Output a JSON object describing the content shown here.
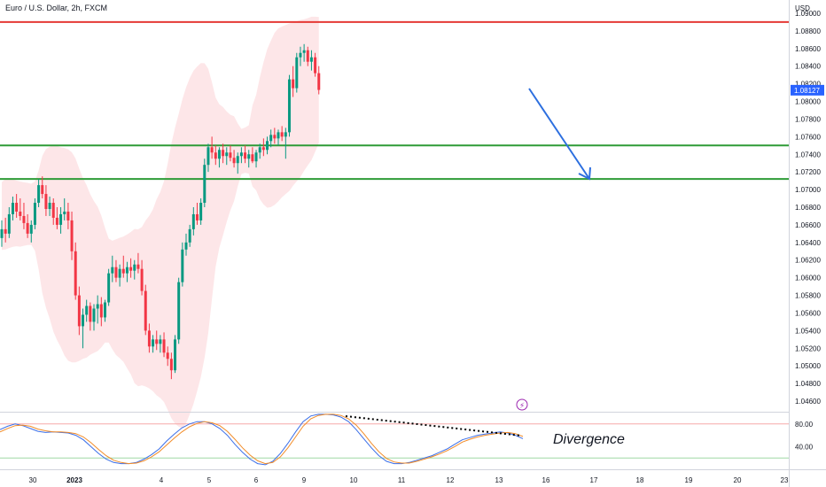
{
  "header": {
    "title": "Euro / U.S. Dollar, 2h, FXCM",
    "currency": "USD"
  },
  "colors": {
    "up": "#089981",
    "down": "#f23645",
    "band": "#fde2e4",
    "resistance": "#e53935",
    "support": "#2e9b37",
    "arrow": "#2d6fdf",
    "stoch_k": "#3a6ee8",
    "stoch_d": "#f28c28",
    "last_badge": "#2962ff"
  },
  "chart_data": [
    {
      "type": "candlestick",
      "series": "EUR/USD",
      "yaxis": {
        "ticks": [
          "1.09000",
          "1.08800",
          "1.08600",
          "1.08400",
          "1.08200",
          "1.08000",
          "1.07800",
          "1.07600",
          "1.07400",
          "1.07200",
          "1.07000",
          "1.06800",
          "1.06600",
          "1.06400",
          "1.06200",
          "1.06000",
          "1.05800",
          "1.05600",
          "1.05400",
          "1.05200",
          "1.05000",
          "1.04800",
          "1.04600"
        ],
        "range": [
          1.0448,
          1.0915
        ]
      },
      "xaxis": {
        "labels": [
          "30",
          "2023",
          "4",
          "5",
          "6",
          "9",
          "10",
          "11",
          "12",
          "13",
          "16",
          "17",
          "18",
          "19",
          "20",
          "23"
        ]
      },
      "last_price": "1.08127",
      "horizontal_levels": [
        {
          "price": 1.089,
          "role": "resistance"
        },
        {
          "price": 1.075,
          "role": "support"
        },
        {
          "price": 1.0712,
          "role": "support"
        }
      ],
      "candles": [
        [
          1.0645,
          1.0665,
          1.0635,
          1.0655
        ],
        [
          1.0655,
          1.0668,
          1.064,
          1.065
        ],
        [
          1.065,
          1.068,
          1.0645,
          1.0672
        ],
        [
          1.0672,
          1.0692,
          1.0665,
          1.0685
        ],
        [
          1.0685,
          1.0695,
          1.0668,
          1.0675
        ],
        [
          1.0675,
          1.069,
          1.0665,
          1.067
        ],
        [
          1.067,
          1.0685,
          1.0655,
          1.0662
        ],
        [
          1.0662,
          1.0672,
          1.0645,
          1.065
        ],
        [
          1.065,
          1.0665,
          1.064,
          1.066
        ],
        [
          1.066,
          1.069,
          1.0655,
          1.0685
        ],
        [
          1.0685,
          1.0712,
          1.068,
          1.0705
        ],
        [
          1.0705,
          1.0715,
          1.069,
          1.0695
        ],
        [
          1.0695,
          1.0705,
          1.067,
          1.0678
        ],
        [
          1.0678,
          1.0692,
          1.067,
          1.0685
        ],
        [
          1.0685,
          1.069,
          1.066,
          1.0668
        ],
        [
          1.0668,
          1.068,
          1.0655,
          1.066
        ],
        [
          1.066,
          1.068,
          1.065,
          1.0672
        ],
        [
          1.0672,
          1.069,
          1.0665,
          1.0675
        ],
        [
          1.0675,
          1.0685,
          1.0655,
          1.0665
        ],
        [
          1.0665,
          1.0675,
          1.062,
          1.063
        ],
        [
          1.063,
          1.064,
          1.0575,
          1.058
        ],
        [
          1.058,
          1.059,
          1.0535,
          1.0545
        ],
        [
          1.0545,
          1.0565,
          1.052,
          1.0558
        ],
        [
          1.0558,
          1.0575,
          1.055,
          1.0568
        ],
        [
          1.0568,
          1.0572,
          1.054,
          1.055
        ],
        [
          1.055,
          1.057,
          1.054,
          1.0565
        ],
        [
          1.0565,
          1.058,
          1.0548,
          1.057
        ],
        [
          1.057,
          1.0578,
          1.0545,
          1.0555
        ],
        [
          1.0555,
          1.0575,
          1.055,
          1.0572
        ],
        [
          1.0572,
          1.061,
          1.0568,
          1.0605
        ],
        [
          1.0605,
          1.0625,
          1.0595,
          1.0612
        ],
        [
          1.0612,
          1.062,
          1.0595,
          1.06
        ],
        [
          1.06,
          1.0615,
          1.059,
          1.061
        ],
        [
          1.061,
          1.0625,
          1.06,
          1.0605
        ],
        [
          1.0605,
          1.0618,
          1.0595,
          1.0612
        ],
        [
          1.0612,
          1.0622,
          1.06,
          1.0608
        ],
        [
          1.0608,
          1.062,
          1.0598,
          1.0615
        ],
        [
          1.0615,
          1.0628,
          1.0605,
          1.061
        ],
        [
          1.061,
          1.062,
          1.058,
          1.0585
        ],
        [
          1.0585,
          1.0592,
          1.0535,
          1.054
        ],
        [
          1.054,
          1.0548,
          1.0515,
          1.0522
        ],
        [
          1.0522,
          1.0535,
          1.0515,
          1.053
        ],
        [
          1.053,
          1.054,
          1.0518,
          1.0525
        ],
        [
          1.0525,
          1.0535,
          1.0515,
          1.053
        ],
        [
          1.053,
          1.0538,
          1.051,
          1.0515
        ],
        [
          1.0515,
          1.0522,
          1.05,
          1.0508
        ],
        [
          1.0508,
          1.0515,
          1.0485,
          1.0495
        ],
        [
          1.0495,
          1.0535,
          1.0492,
          1.053
        ],
        [
          1.053,
          1.06,
          1.0525,
          1.0595
        ],
        [
          1.0595,
          1.064,
          1.059,
          1.0632
        ],
        [
          1.0632,
          1.065,
          1.0625,
          1.064
        ],
        [
          1.064,
          1.066,
          1.0635,
          1.0655
        ],
        [
          1.0655,
          1.068,
          1.0648,
          1.0672
        ],
        [
          1.0672,
          1.0685,
          1.066,
          1.0665
        ],
        [
          1.0665,
          1.069,
          1.066,
          1.0685
        ],
        [
          1.0685,
          1.0735,
          1.068,
          1.0728
        ],
        [
          1.0728,
          1.0752,
          1.072,
          1.0748
        ],
        [
          1.0748,
          1.076,
          1.0735,
          1.0742
        ],
        [
          1.0742,
          1.075,
          1.0728,
          1.0735
        ],
        [
          1.0735,
          1.0748,
          1.0725,
          1.0745
        ],
        [
          1.0745,
          1.0752,
          1.073,
          1.0738
        ],
        [
          1.0738,
          1.0748,
          1.0728,
          1.0742
        ],
        [
          1.0742,
          1.075,
          1.0732,
          1.0736
        ],
        [
          1.0736,
          1.0745,
          1.0725,
          1.073
        ],
        [
          1.073,
          1.0742,
          1.0718,
          1.0738
        ],
        [
          1.0738,
          1.0748,
          1.073,
          1.0742
        ],
        [
          1.0742,
          1.075,
          1.073,
          1.0735
        ],
        [
          1.0735,
          1.0745,
          1.0725,
          1.074
        ],
        [
          1.074,
          1.0748,
          1.073,
          1.0732
        ],
        [
          1.0732,
          1.0745,
          1.0725,
          1.0742
        ],
        [
          1.0742,
          1.0752,
          1.0735,
          1.0748
        ],
        [
          1.0748,
          1.0758,
          1.0738,
          1.0745
        ],
        [
          1.0745,
          1.076,
          1.074,
          1.0755
        ],
        [
          1.0755,
          1.0768,
          1.0748,
          1.0762
        ],
        [
          1.0762,
          1.077,
          1.0752,
          1.0758
        ],
        [
          1.0758,
          1.0768,
          1.075,
          1.0765
        ],
        [
          1.0765,
          1.0772,
          1.0755,
          1.076
        ],
        [
          1.076,
          1.077,
          1.0735,
          1.0765
        ],
        [
          1.0765,
          1.083,
          1.076,
          1.0825
        ],
        [
          1.0825,
          1.084,
          1.0805,
          1.0815
        ],
        [
          1.0815,
          1.0855,
          1.081,
          1.085
        ],
        [
          1.085,
          1.0862,
          1.084,
          1.0855
        ],
        [
          1.0855,
          1.0865,
          1.0845,
          1.0858
        ],
        [
          1.0858,
          1.0862,
          1.084,
          1.0845
        ],
        [
          1.0845,
          1.0858,
          1.0835,
          1.085
        ],
        [
          1.085,
          1.0855,
          1.0828,
          1.0832
        ],
        [
          1.0832,
          1.084,
          1.0808,
          1.0813
        ]
      ]
    },
    {
      "type": "line",
      "indicator": "stochastic",
      "yaxis": {
        "ticks": [
          "80.00",
          "40.00"
        ],
        "range": [
          0,
          100
        ],
        "levels": [
          80,
          20
        ]
      },
      "series": [
        {
          "values": [
            70,
            76,
            80,
            77,
            72,
            67,
            65,
            66,
            65,
            64,
            60,
            52,
            40,
            28,
            18,
            12,
            10,
            10,
            12,
            18,
            26,
            36,
            50,
            62,
            73,
            80,
            84,
            84,
            80,
            72,
            60,
            44,
            30,
            18,
            10,
            8,
            14,
            28,
            46,
            66,
            84,
            94,
            97,
            97,
            96,
            92,
            84,
            70,
            54,
            38,
            24,
            14,
            10,
            10,
            12,
            16,
            20,
            24,
            30,
            36,
            44,
            52,
            56,
            60,
            62,
            64,
            66,
            64,
            60,
            54
          ]
        },
        {
          "values": [
            66,
            72,
            77,
            78,
            76,
            71,
            68,
            66,
            66,
            65,
            63,
            57,
            47,
            35,
            24,
            16,
            12,
            10,
            11,
            15,
            22,
            31,
            43,
            55,
            66,
            75,
            81,
            84,
            82,
            77,
            67,
            53,
            38,
            25,
            15,
            10,
            12,
            22,
            38,
            57,
            76,
            89,
            95,
            97,
            97,
            95,
            89,
            78,
            63,
            46,
            31,
            19,
            13,
            11,
            11,
            14,
            18,
            22,
            27,
            33,
            40,
            48,
            53,
            57,
            60,
            62,
            64,
            65,
            63,
            58
          ]
        }
      ],
      "annotation": "Divergence"
    }
  ]
}
